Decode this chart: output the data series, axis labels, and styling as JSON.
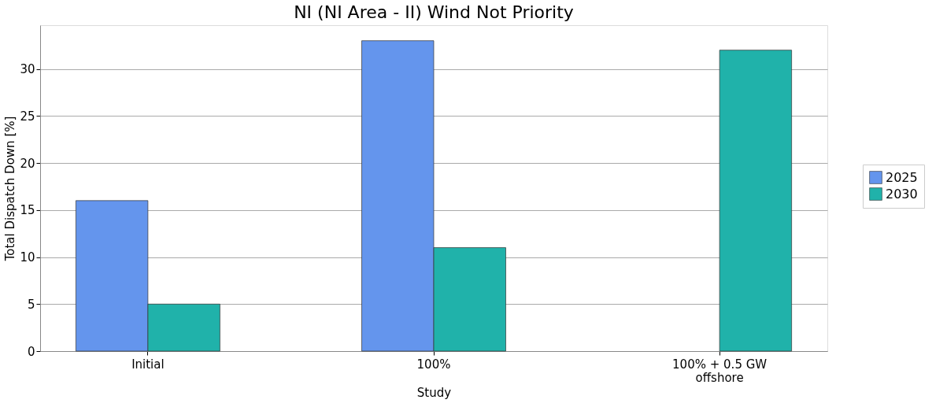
{
  "chart_data": {
    "type": "bar",
    "title": "NI (NI Area - II) Wind Not Priority",
    "xlabel": "Study",
    "ylabel": "Total Dispatch Down [%]",
    "categories": [
      "Initial",
      "100%",
      "100% + 0.5 GW offshore"
    ],
    "series": [
      {
        "name": "2025",
        "color": "#6495ed",
        "values": [
          16,
          33,
          null
        ]
      },
      {
        "name": "2030",
        "color": "#20b2aa",
        "values": [
          5,
          11,
          32
        ]
      }
    ],
    "ylim": [
      0,
      34.65
    ],
    "yticks": [
      0,
      5,
      10,
      15,
      20,
      25,
      30
    ],
    "grid": "y",
    "legend": "right"
  }
}
